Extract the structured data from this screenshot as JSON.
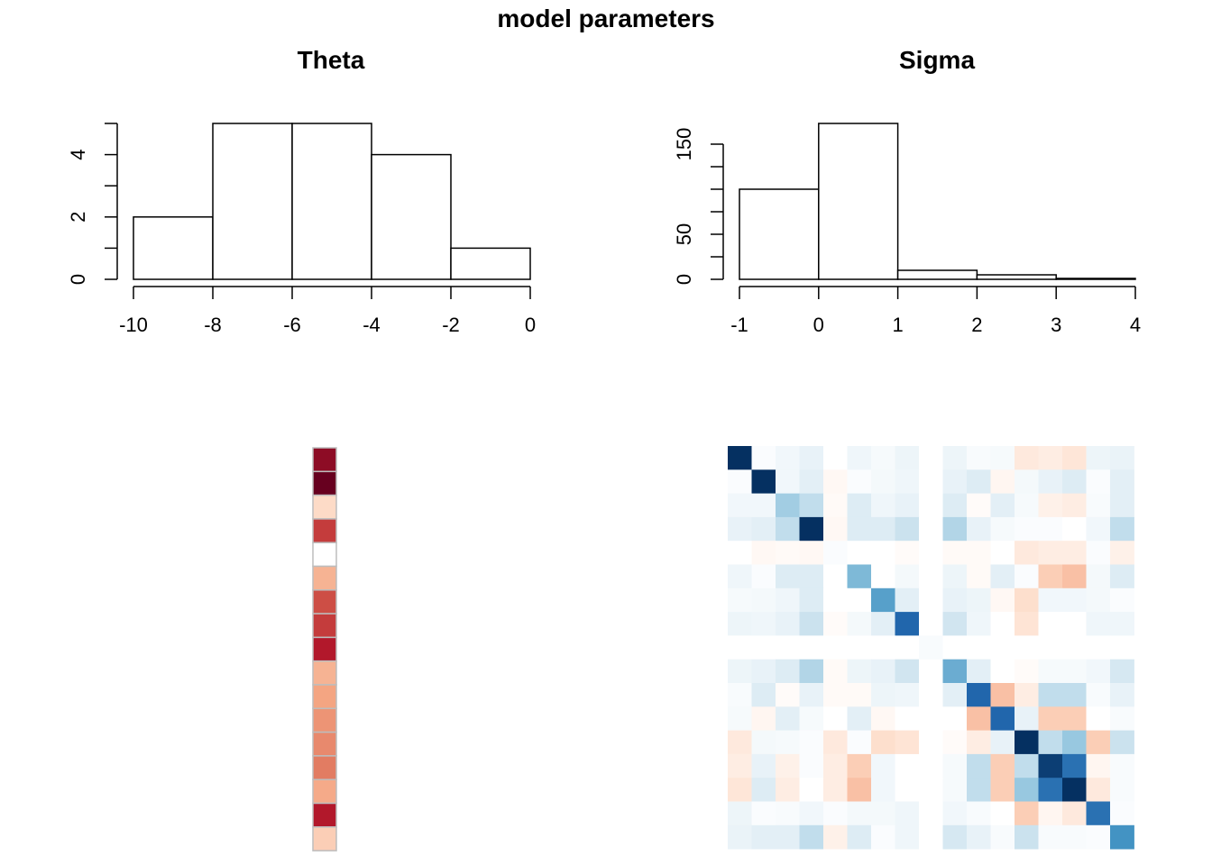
{
  "figure": {
    "title": "model parameters"
  },
  "colors": {
    "background": "#ffffff",
    "axis": "#000000",
    "heatmap_neg": "#67001f",
    "heatmap_pos": "#053061",
    "heatmap_mid": "#ffffff",
    "cell_border": "#bdbdbd"
  },
  "chart_data": [
    {
      "type": "bar",
      "name_id": "theta-hist",
      "title": "Theta",
      "xlabel": "",
      "ylabel": "",
      "breaks": [
        -10,
        -8,
        -6,
        -4,
        -2,
        0
      ],
      "counts": [
        2,
        5,
        5,
        4,
        1
      ],
      "xlim": [
        -10,
        0
      ],
      "ylim": [
        0,
        5
      ],
      "xticks": [
        "-10",
        "-8",
        "-6",
        "-4",
        "-2",
        "0"
      ],
      "yticks": [
        "0",
        "2",
        "4"
      ],
      "grid": false
    },
    {
      "type": "bar",
      "name_id": "sigma-hist",
      "title": "Sigma",
      "xlabel": "",
      "ylabel": "",
      "breaks": [
        -1,
        0,
        1,
        2,
        3,
        4
      ],
      "counts": [
        100,
        173,
        10,
        5,
        1
      ],
      "xlim": [
        -1,
        4
      ],
      "ylim": [
        0,
        173
      ],
      "xticks": [
        "-1",
        "0",
        "1",
        "2",
        "3",
        "4"
      ],
      "yticks": [
        "0",
        "50",
        "150"
      ],
      "grid": false
    },
    {
      "type": "heatmap",
      "name_id": "theta-heatmap",
      "rows": 17,
      "cols": 1,
      "values": [
        -0.9,
        -1.0,
        -0.2,
        -0.7,
        0.0,
        -0.35,
        -0.65,
        -0.7,
        -0.8,
        -0.35,
        -0.4,
        -0.45,
        -0.48,
        -0.52,
        -0.38,
        -0.8,
        -0.25
      ]
    },
    {
      "type": "heatmap",
      "name_id": "sigma-heatmap",
      "rows": 17,
      "cols": 17,
      "values": [
        [
          1.0,
          0.02,
          0.06,
          0.1,
          0.0,
          0.07,
          0.04,
          0.08,
          0.0,
          0.08,
          0.03,
          0.04,
          -0.12,
          -0.1,
          -0.14,
          0.08,
          0.09
        ],
        [
          0.02,
          1.0,
          0.06,
          0.12,
          -0.04,
          0.02,
          0.05,
          0.07,
          0.0,
          0.1,
          0.15,
          -0.05,
          0.05,
          0.1,
          0.15,
          0.02,
          0.12
        ],
        [
          0.06,
          0.06,
          0.35,
          0.25,
          -0.03,
          0.15,
          0.07,
          0.1,
          0.0,
          0.15,
          -0.02,
          0.12,
          0.04,
          -0.08,
          -0.1,
          0.03,
          0.12
        ],
        [
          0.1,
          0.12,
          0.25,
          1.0,
          -0.04,
          0.15,
          0.15,
          0.22,
          0.0,
          0.3,
          0.1,
          0.04,
          0.02,
          0.02,
          0.0,
          0.06,
          0.25
        ],
        [
          0.0,
          -0.04,
          -0.03,
          -0.04,
          0.02,
          0.0,
          0.0,
          -0.02,
          0.0,
          -0.03,
          -0.03,
          0.0,
          -0.12,
          -0.1,
          -0.1,
          0.02,
          -0.08
        ],
        [
          0.07,
          0.02,
          0.15,
          0.15,
          0.0,
          0.45,
          0.0,
          0.05,
          0.0,
          0.08,
          -0.03,
          0.12,
          0.02,
          -0.25,
          -0.3,
          0.05,
          0.15
        ],
        [
          0.04,
          0.05,
          0.07,
          0.15,
          0.0,
          0.0,
          0.55,
          0.12,
          0.0,
          0.1,
          0.08,
          -0.04,
          -0.18,
          0.06,
          0.06,
          0.05,
          0.02
        ],
        [
          0.08,
          0.07,
          0.1,
          0.22,
          -0.02,
          0.05,
          0.12,
          0.8,
          0.0,
          0.2,
          0.07,
          0.0,
          -0.15,
          0.0,
          0.0,
          0.07,
          0.07
        ],
        [
          0.0,
          0.0,
          0.0,
          0.0,
          0.0,
          0.0,
          0.0,
          0.0,
          0.03,
          0.0,
          0.0,
          0.0,
          0.0,
          0.0,
          0.0,
          0.0,
          0.0
        ],
        [
          0.08,
          0.1,
          0.15,
          0.3,
          -0.03,
          0.08,
          0.1,
          0.2,
          0.0,
          0.5,
          0.12,
          0.0,
          -0.02,
          0.04,
          0.04,
          0.06,
          0.18
        ],
        [
          0.03,
          0.15,
          -0.02,
          0.1,
          -0.03,
          -0.03,
          0.08,
          0.07,
          0.0,
          0.12,
          0.8,
          -0.3,
          -0.1,
          0.25,
          0.25,
          0.03,
          0.1
        ],
        [
          0.04,
          -0.05,
          0.12,
          0.04,
          0.0,
          0.12,
          -0.04,
          0.0,
          0.0,
          0.0,
          -0.3,
          0.8,
          0.1,
          -0.25,
          -0.25,
          0.0,
          0.03
        ],
        [
          -0.12,
          0.05,
          0.04,
          0.02,
          -0.12,
          0.02,
          -0.18,
          -0.15,
          0.0,
          -0.02,
          -0.1,
          0.1,
          1.0,
          0.25,
          0.38,
          -0.25,
          0.22
        ],
        [
          -0.1,
          0.1,
          -0.08,
          0.02,
          -0.1,
          -0.25,
          0.06,
          0.0,
          0.0,
          0.04,
          0.25,
          -0.25,
          0.25,
          0.95,
          0.75,
          -0.05,
          0.03
        ],
        [
          -0.14,
          0.15,
          -0.1,
          0.0,
          -0.1,
          -0.3,
          0.06,
          0.0,
          0.0,
          0.04,
          0.25,
          -0.25,
          0.38,
          0.75,
          1.0,
          -0.12,
          0.03
        ],
        [
          0.08,
          0.02,
          0.03,
          0.06,
          0.02,
          0.05,
          0.05,
          0.07,
          0.0,
          0.06,
          0.03,
          0.0,
          -0.25,
          -0.05,
          -0.12,
          0.75,
          0.02
        ],
        [
          0.09,
          0.12,
          0.12,
          0.25,
          -0.08,
          0.15,
          0.02,
          0.07,
          0.0,
          0.18,
          0.1,
          0.03,
          0.22,
          0.03,
          0.03,
          0.02,
          0.6
        ]
      ]
    }
  ]
}
